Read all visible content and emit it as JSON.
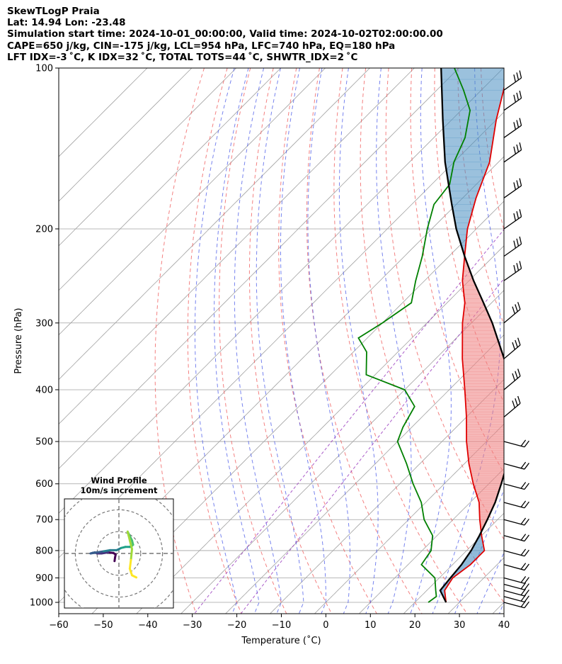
{
  "header": {
    "line1": "SkewTLogP Praia",
    "line2": "Lat: 14.94   Lon: -23.48",
    "line3": "Simulation start time: 2024-10-01_00:00:00, Valid time: 2024-10-02T02:00:00.00",
    "line4": "CAPE=650 j/kg, CIN=-175 j/kg, LCL=954 hPa, LFC=740 hPa, EQ=180 hPa",
    "line5": "LFT IDX=-3 ˚C, K IDX=32 ˚C, TOTAL TOTS=44 ˚C, SHWTR_IDX=2 ˚C"
  },
  "chart_data": {
    "type": "skewt-logp",
    "xlabel": "Temperature (˚C)",
    "ylabel": "Pressure (hPa)",
    "xlim": [
      -60,
      40
    ],
    "ylim": [
      1050,
      100
    ],
    "x_ticks": [
      -60,
      -50,
      -40,
      -30,
      -20,
      -10,
      0,
      10,
      20,
      30,
      40
    ],
    "x_tick_labels": [
      "−60",
      "−50",
      "−40",
      "−30",
      "−20",
      "−10",
      "0",
      "10",
      "20",
      "30",
      "40"
    ],
    "y_ticks": [
      1000,
      900,
      800,
      700,
      600,
      500,
      400,
      300,
      200,
      100
    ],
    "y_tick_labels": [
      "1000",
      "900",
      "800",
      "700",
      "600",
      "500",
      "400",
      "300",
      "200",
      "100"
    ],
    "colors": {
      "temperature": "#e00000",
      "dewpoint": "#008000",
      "parcel": "#000000",
      "cape_fill": "#f08080",
      "cin_fill": "#4a90c2",
      "dry_adiabat": "#f06060",
      "moist_adiabat": "#4a5ae8",
      "mixing_ratio": "#9b3fbf",
      "isotherm": "#a0a0a0",
      "isobar": "#a0a0a0"
    },
    "series": [
      {
        "name": "Temperature",
        "points": [
          [
            1000,
            27
          ],
          [
            950,
            24
          ],
          [
            900,
            23
          ],
          [
            850,
            24
          ],
          [
            800,
            24
          ],
          [
            750,
            20
          ],
          [
            700,
            16
          ],
          [
            650,
            12
          ],
          [
            600,
            6.5
          ],
          [
            550,
            1
          ],
          [
            500,
            -4.5
          ],
          [
            450,
            -10
          ],
          [
            400,
            -16.5
          ],
          [
            350,
            -24
          ],
          [
            300,
            -32
          ],
          [
            275,
            -36
          ],
          [
            250,
            -41.5
          ],
          [
            225,
            -46.5
          ],
          [
            200,
            -52
          ],
          [
            175,
            -57
          ],
          [
            150,
            -62
          ],
          [
            125,
            -70
          ],
          [
            110,
            -75
          ],
          [
            100,
            -79
          ]
        ]
      },
      {
        "name": "Dewpoint",
        "points": [
          [
            1000,
            23
          ],
          [
            975,
            23.5
          ],
          [
            950,
            22
          ],
          [
            900,
            19
          ],
          [
            850,
            13
          ],
          [
            800,
            12
          ],
          [
            750,
            9
          ],
          [
            700,
            3.5
          ],
          [
            650,
            -1
          ],
          [
            600,
            -7
          ],
          [
            550,
            -13
          ],
          [
            500,
            -20
          ],
          [
            470,
            -22
          ],
          [
            430,
            -24
          ],
          [
            400,
            -30
          ],
          [
            375,
            -42
          ],
          [
            340,
            -47
          ],
          [
            320,
            -52
          ],
          [
            300,
            -50
          ],
          [
            275,
            -48
          ],
          [
            250,
            -52
          ],
          [
            225,
            -56
          ],
          [
            200,
            -61
          ],
          [
            180,
            -65
          ],
          [
            165,
            -66
          ],
          [
            150,
            -70
          ],
          [
            135,
            -73
          ],
          [
            120,
            -78
          ],
          [
            110,
            -84
          ],
          [
            100,
            -91
          ]
        ]
      },
      {
        "name": "Parcel",
        "points": [
          [
            1000,
            27
          ],
          [
            950,
            23
          ],
          [
            900,
            22.5
          ],
          [
            850,
            22
          ],
          [
            800,
            21
          ],
          [
            750,
            19.5
          ],
          [
            700,
            17.7
          ],
          [
            650,
            15.6
          ],
          [
            600,
            12.8
          ],
          [
            550,
            9.6
          ],
          [
            500,
            5.5
          ],
          [
            450,
            0.4
          ],
          [
            400,
            -6.2
          ],
          [
            350,
            -14.6
          ],
          [
            300,
            -25.3
          ],
          [
            275,
            -31.8
          ],
          [
            250,
            -39
          ],
          [
            225,
            -46.5
          ],
          [
            200,
            -54.5
          ],
          [
            180,
            -61
          ],
          [
            150,
            -72
          ],
          [
            125,
            -82
          ],
          [
            100,
            -94
          ]
        ]
      }
    ],
    "wind_barbs_pressures": [
      1000,
      975,
      950,
      925,
      900,
      850,
      800,
      750,
      700,
      650,
      600,
      550,
      500,
      450,
      400,
      350,
      300,
      250,
      225,
      200,
      175,
      150,
      135,
      120,
      110
    ],
    "hodograph": {
      "title": "Wind Profile",
      "subtitle": "10m/s increment",
      "rings": [
        10,
        20,
        30
      ],
      "range": [
        -25,
        25
      ],
      "points": [
        [
          -2,
          -3.5
        ],
        [
          -1.8,
          -2
        ],
        [
          -1.5,
          -0.5
        ],
        [
          -2.5,
          0.2
        ],
        [
          -5,
          0.5
        ],
        [
          -8,
          0
        ],
        [
          -10,
          0
        ],
        [
          -11,
          0.5
        ],
        [
          -12,
          0.3
        ],
        [
          -13,
          0
        ],
        [
          -10,
          0.5
        ],
        [
          -7,
          1
        ],
        [
          -4,
          1.5
        ],
        [
          -1,
          1.5
        ],
        [
          1,
          2.5
        ],
        [
          3,
          3
        ],
        [
          5,
          3
        ],
        [
          6,
          3.5
        ],
        [
          6.5,
          4
        ],
        [
          6,
          6
        ],
        [
          5,
          8
        ],
        [
          4,
          10
        ],
        [
          5,
          6
        ],
        [
          6,
          2
        ],
        [
          5.5,
          -3
        ],
        [
          5,
          -7
        ],
        [
          6,
          -10
        ],
        [
          8,
          -11
        ]
      ]
    }
  }
}
